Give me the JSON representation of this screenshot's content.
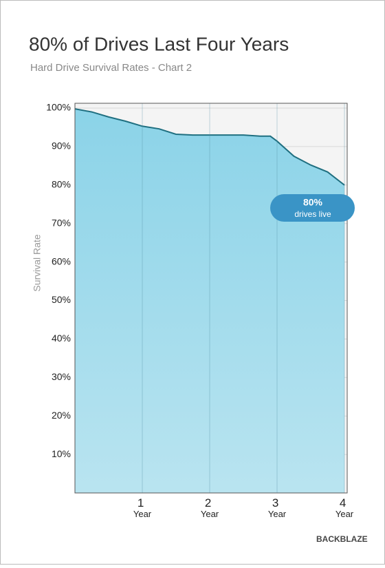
{
  "chart_data": {
    "type": "area",
    "title": "80% of Drives Last Four Years",
    "subtitle": "Hard Drive Survival Rates - Chart 2",
    "y_label": "Survival Rate",
    "x": [
      0,
      0.25,
      0.5,
      0.75,
      1,
      1.25,
      1.5,
      1.75,
      2,
      2.5,
      2.75,
      2.9,
      3,
      3.25,
      3.5,
      3.75,
      4
    ],
    "values": [
      99.8,
      99,
      97.7,
      96.6,
      95.3,
      94.6,
      93.2,
      93,
      93,
      93,
      92.7,
      92.7,
      91.4,
      87.5,
      85.2,
      83.4,
      80
    ],
    "color": "#1f6f80",
    "fill": "#8fd4e9",
    "xlim": [
      0,
      4
    ],
    "xticks": [
      {
        "value": 1,
        "label": "1 Year"
      },
      {
        "value": 2,
        "label": "2 Year"
      },
      {
        "value": 3,
        "label": "3 Year"
      },
      {
        "value": 4,
        "label": "4 Year"
      }
    ],
    "ylim": [
      0,
      100
    ],
    "yticks": [
      {
        "value": 10,
        "label": "10%"
      },
      {
        "value": 20,
        "label": "20%"
      },
      {
        "value": 30,
        "label": "30%"
      },
      {
        "value": 40,
        "label": "40%"
      },
      {
        "value": 50,
        "label": "50%"
      },
      {
        "value": 60,
        "label": "60%"
      },
      {
        "value": 70,
        "label": "70%"
      },
      {
        "value": 80,
        "label": "80%"
      },
      {
        "value": 90,
        "label": "90%"
      },
      {
        "value": 100,
        "label": "100%"
      }
    ],
    "grid": true,
    "annotations": [
      "80%",
      "drives live"
    ],
    "logo": "BACKBLAZE"
  }
}
